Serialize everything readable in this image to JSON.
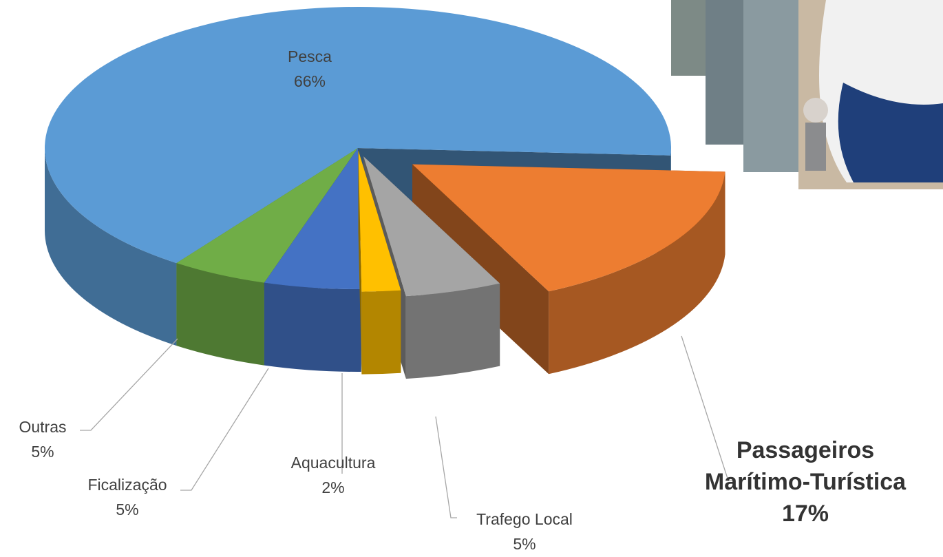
{
  "chart_data": {
    "type": "pie3d",
    "categories": [
      "Pesca",
      "Passageiros Marítimo-Turística",
      "Trafego Local",
      "Aquacultura",
      "Ficalização",
      "Outras"
    ],
    "values": [
      66,
      17,
      5,
      2,
      5,
      5
    ],
    "value_labels": [
      "66%",
      "17%",
      "5%",
      "2%",
      "5%",
      "5%"
    ],
    "colors": [
      "#5b9bd5",
      "#ed7d31",
      "#a5a5a5",
      "#ffc000",
      "#4472c4",
      "#70ad47"
    ]
  }
}
